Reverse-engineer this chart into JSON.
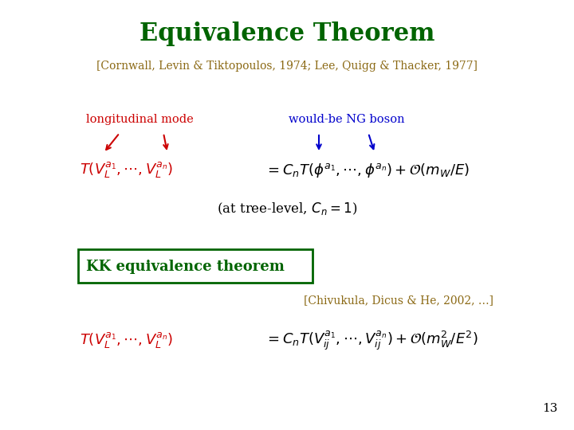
{
  "title": "Equivalence Theorem",
  "subtitle": "[Cornwall, Levin & Tiktopoulos, 1974; Lee, Quigg & Thacker, 1977]",
  "title_color": "#006400",
  "subtitle_color": "#8B6914",
  "longitudinal_label": "longitudinal mode",
  "longitudinal_color": "#CC0000",
  "would_be_label": "would-be NG boson",
  "would_be_color": "#0000CC",
  "kk_label": "KK equivalence theorem",
  "kk_color": "#006400",
  "kk_box_color": "#006400",
  "chivukula_ref": "[Chivukula, Dicus & He, 2002, …]",
  "chivukula_color": "#8B6914",
  "eq2_left_color": "#CC0000",
  "eq2_right_color": "#000080",
  "page_number": "13",
  "background_color": "#FFFFFF"
}
